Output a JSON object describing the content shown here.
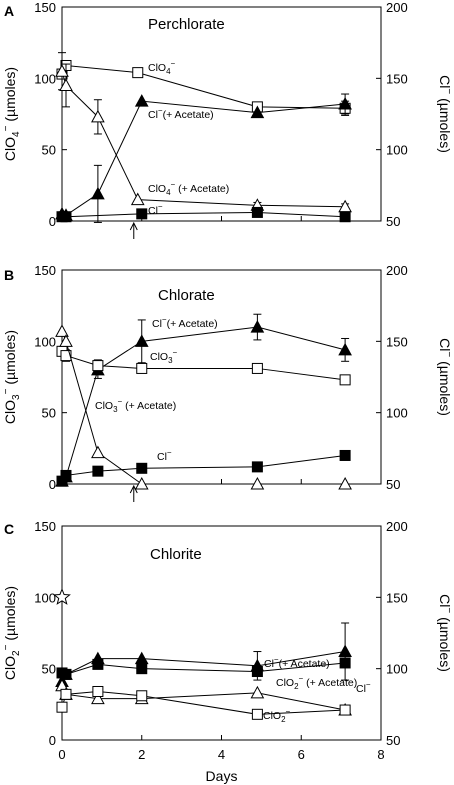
{
  "chart_data": [
    {
      "panel": "A",
      "type": "line",
      "title": "Perchlorate",
      "ylabel": "ClO4- (µmoles)",
      "ylabel_main": "ClO",
      "ylabel_sub": "4",
      "ylabel_sup": "−",
      "ylabel_tail": " (µmoles)",
      "y2label": "Cl- (µmoles)",
      "ylim": [
        0,
        150
      ],
      "y2lim": [
        50,
        200
      ],
      "xlim": [
        0,
        8
      ],
      "yticks": [
        "0",
        "50",
        "100",
        "150"
      ],
      "y2ticks": [
        "50",
        "100",
        "150",
        "200"
      ],
      "arrow_x": 1.8,
      "series": [
        {
          "axis": "left",
          "marker": "square-open",
          "x": [
            0,
            0.1,
            1.9,
            4.9,
            7.1
          ],
          "y": [
            103,
            109,
            104,
            80,
            79
          ],
          "err": [
            0,
            3,
            0,
            0,
            5
          ]
        },
        {
          "axis": "left",
          "marker": "triangle-open",
          "x": [
            0,
            0.1,
            0.9,
            1.9,
            4.9,
            7.1
          ],
          "y": [
            105,
            95,
            73,
            15,
            11,
            10
          ],
          "err": [
            13,
            15,
            12,
            0,
            2,
            2
          ]
        },
        {
          "axis": "right",
          "marker": "triangle-filled",
          "x": [
            0,
            0.1,
            0.9,
            2,
            4.9,
            7.1
          ],
          "y": [
            55,
            54,
            69,
            134,
            126,
            132
          ],
          "err": [
            0,
            0,
            20,
            0,
            0,
            7
          ]
        },
        {
          "axis": "right",
          "marker": "square-filled",
          "x": [
            0,
            0.1,
            2,
            4.9,
            7.1
          ],
          "y": [
            53,
            53,
            55,
            56,
            53
          ],
          "err": [
            0,
            0,
            0,
            0,
            0
          ]
        }
      ],
      "annotations": [
        {
          "main": "ClO",
          "sub": "4",
          "sup": "−",
          "tail": ""
        },
        {
          "main": "Cl",
          "sub": "",
          "sup": "−",
          "tail": "(+ Acetate)"
        },
        {
          "main": "ClO",
          "sub": "4",
          "sup": "−",
          "tail": " (+ Acetate)"
        },
        {
          "main": "Cl",
          "sub": "",
          "sup": "−",
          "tail": ""
        }
      ]
    },
    {
      "panel": "B",
      "type": "line",
      "title": "Chlorate",
      "ylabel": "ClO3- (µmoles)",
      "ylabel_main": "ClO",
      "ylabel_sub": "3",
      "ylabel_sup": "−",
      "ylabel_tail": " (µmoles)",
      "y2label": "Cl- (µmoles)",
      "ylim": [
        0,
        150
      ],
      "y2lim": [
        50,
        200
      ],
      "xlim": [
        0,
        8
      ],
      "yticks": [
        "0",
        "50",
        "100",
        "150"
      ],
      "y2ticks": [
        "50",
        "100",
        "150",
        "200"
      ],
      "arrow_x": 1.8,
      "series": [
        {
          "axis": "left",
          "marker": "triangle-filled",
          "x": [
            0,
            0.1,
            0.9,
            2,
            4.9,
            7.1
          ],
          "y": [
            2,
            5,
            80,
            100,
            110,
            94
          ],
          "err": [
            0,
            0,
            6,
            15,
            9,
            8
          ]
        },
        {
          "axis": "left",
          "marker": "square-open",
          "x": [
            0,
            0.1,
            0.9,
            2,
            4.9,
            7.1
          ],
          "y": [
            93,
            90,
            83,
            81,
            81,
            73
          ],
          "err": [
            0,
            4,
            4,
            0,
            0,
            0
          ]
        },
        {
          "axis": "left",
          "marker": "triangle-open",
          "x": [
            0,
            0.1,
            0.9,
            2,
            4.9,
            7.1
          ],
          "y": [
            107,
            100,
            22,
            0,
            0,
            0
          ],
          "err": [
            0,
            0,
            0,
            0,
            0,
            0
          ]
        },
        {
          "axis": "right",
          "marker": "square-filled",
          "x": [
            0,
            0.1,
            0.9,
            2,
            4.9,
            7.1
          ],
          "y": [
            52,
            56,
            59,
            61,
            62,
            70
          ],
          "err": [
            0,
            0,
            0,
            0,
            0,
            0
          ]
        }
      ],
      "annotations": [
        {
          "main": "Cl",
          "sub": "",
          "sup": "−",
          "tail": "(+ Acetate)"
        },
        {
          "main": "ClO",
          "sub": "3",
          "sup": "−",
          "tail": ""
        },
        {
          "main": "ClO",
          "sub": "3",
          "sup": "−",
          "tail": " (+ Acetate)"
        },
        {
          "main": "Cl",
          "sub": "",
          "sup": "−",
          "tail": ""
        }
      ]
    },
    {
      "panel": "C",
      "type": "line",
      "title": "Chlorite",
      "ylabel": "ClO2- (µmoles)",
      "ylabel_main": "ClO",
      "ylabel_sub": "2",
      "ylabel_sup": "−",
      "ylabel_tail": " (µmoles)",
      "y2label": "Cl- (µmoles)",
      "ylim": [
        0,
        150
      ],
      "y2lim": [
        50,
        200
      ],
      "xlim": [
        0,
        8
      ],
      "xlabel": "Days",
      "yticks": [
        "0",
        "50",
        "100",
        "150"
      ],
      "y2ticks": [
        "50",
        "100",
        "150",
        "200"
      ],
      "xticks": [
        "0",
        "2",
        "4",
        "6",
        "8"
      ],
      "star": {
        "x": 0,
        "y": 100
      },
      "series": [
        {
          "axis": "right",
          "marker": "triangle-filled",
          "x": [
            0,
            0.1,
            0.9,
            2,
            4.9,
            7.1
          ],
          "y": [
            91,
            96,
            107,
            107,
            102,
            112
          ],
          "err": [
            0,
            0,
            0,
            0,
            10,
            20
          ]
        },
        {
          "axis": "right",
          "marker": "square-filled",
          "x": [
            0,
            0.1,
            0.9,
            2,
            4.9,
            7.1
          ],
          "y": [
            97,
            96,
            103,
            100,
            98,
            104
          ],
          "err": [
            0,
            0,
            0,
            0,
            0,
            0
          ]
        },
        {
          "axis": "left",
          "marker": "triangle-open",
          "x": [
            0,
            0.1,
            0.9,
            2,
            4.9,
            7.1
          ],
          "y": [
            38,
            32,
            29,
            29,
            33,
            21
          ],
          "err": [
            0,
            0,
            0,
            0,
            0,
            0
          ]
        },
        {
          "axis": "left",
          "marker": "square-open",
          "x": [
            0,
            0.1,
            0.9,
            2,
            4.9,
            7.1
          ],
          "y": [
            23,
            32,
            34,
            31,
            18,
            21
          ],
          "err": [
            0,
            0,
            0,
            0,
            0,
            0
          ]
        }
      ],
      "annotations": [
        {
          "main": "Cl",
          "sub": "",
          "sup": "−",
          "tail": "(+ Acetate)"
        },
        {
          "main": "Cl",
          "sub": "",
          "sup": "−",
          "tail": ""
        },
        {
          "main": "ClO",
          "sub": "2",
          "sup": "−",
          "tail": " (+ Acetate)"
        },
        {
          "main": "ClO",
          "sub": "2",
          "sup": "−",
          "tail": ""
        }
      ]
    }
  ]
}
